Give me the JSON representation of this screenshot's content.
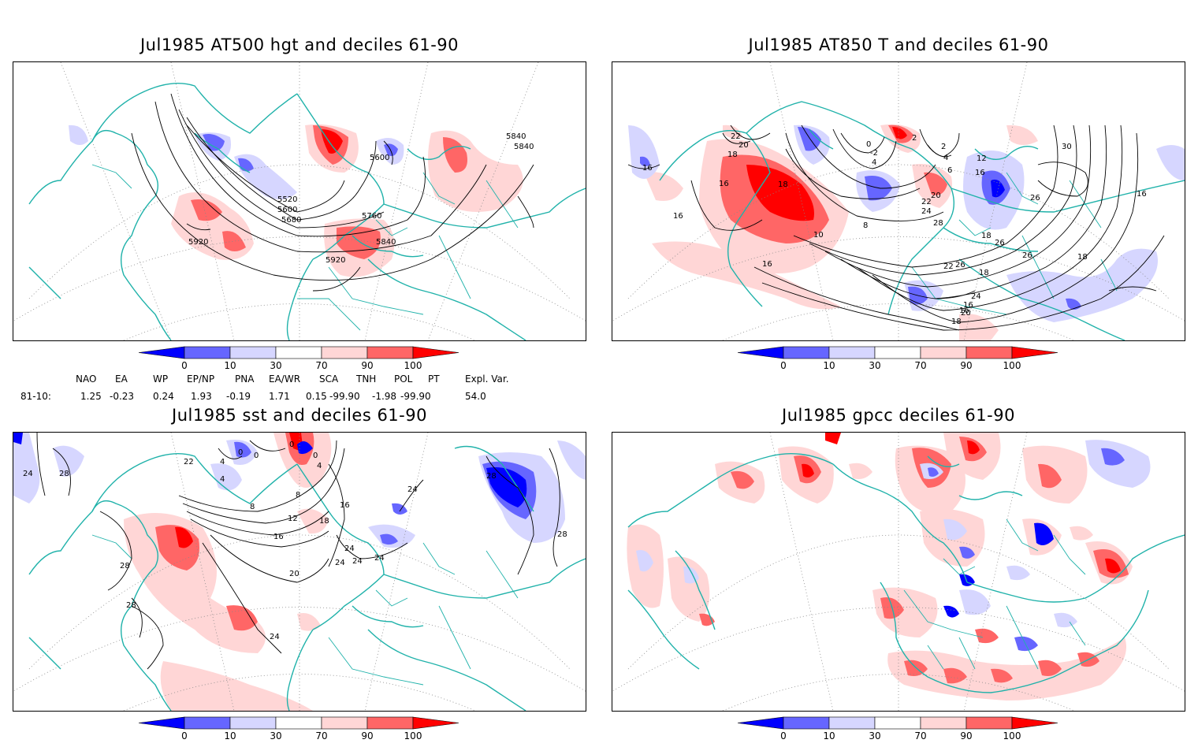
{
  "panels": {
    "p1": {
      "title": "Jul1985 AT500 hgt and deciles 61-90",
      "contour_labels": [
        "5520",
        "5600",
        "5680",
        "5600",
        "5760",
        "5840",
        "5840",
        "5840",
        "5920",
        "5920"
      ]
    },
    "p2": {
      "title": "Jul1985 AT850 T and deciles 61-90",
      "contour_labels": [
        "22",
        "20",
        "18",
        "16",
        "16",
        "18",
        "16",
        "2",
        "0",
        "-2",
        "4",
        "2",
        "4",
        "6",
        "10",
        "8",
        "12",
        "16",
        "18",
        "20",
        "22",
        "24",
        "28",
        "26",
        "26",
        "24",
        "22",
        "20",
        "18",
        "16",
        "16",
        "16",
        "18",
        "30",
        "26",
        "16",
        "24",
        "22",
        "26",
        "30",
        "18"
      ]
    },
    "p3": {
      "title": "Jul1985 sst and deciles 61-90",
      "contour_labels": [
        "24",
        "28",
        "22",
        "4",
        "4",
        "0",
        "0",
        "0",
        "0",
        "4",
        "8",
        "8",
        "12",
        "16",
        "16",
        "18",
        "20",
        "24",
        "24",
        "24",
        "24",
        "28",
        "28",
        "28",
        "24",
        "28",
        "24"
      ]
    },
    "p4": {
      "title": "Jul1985 gpcc deciles 61-90",
      "contour_labels": []
    }
  },
  "colorbar": {
    "labels": [
      "0",
      "10",
      "30",
      "70",
      "90",
      "100"
    ],
    "colors": [
      "#0000ff",
      "#6666ff",
      "#d6d6ff",
      "#ffffff",
      "#ffd6d6",
      "#ff6666",
      "#ff0000"
    ]
  },
  "indices": {
    "headers": [
      "NAO",
      "EA",
      "WP",
      "EP/NP",
      "PNA",
      "EA/WR",
      "SCA",
      "TNH",
      "POL",
      "PT",
      "Expl. Var."
    ],
    "row_label": "81-10:",
    "values": [
      "1.25",
      "-0.23",
      "0.24",
      "1.93",
      "-0.19",
      "1.71",
      "0.15",
      "-99.90",
      "-1.98",
      "-99.90",
      "54.0"
    ]
  },
  "colors": {
    "coast": "#20b2aa",
    "contour": "#000000",
    "grid": "#888888"
  }
}
